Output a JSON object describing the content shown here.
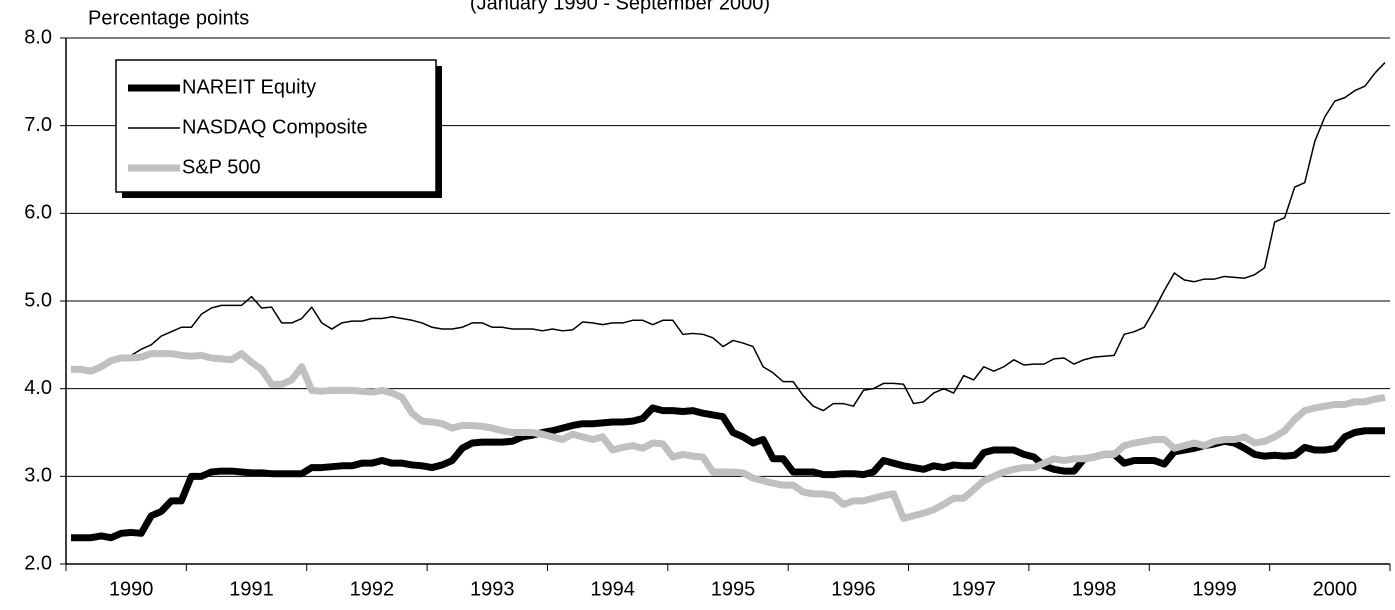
{
  "chart_data": {
    "type": "line",
    "subtitle": "(January 1990 - September 2000)",
    "y_label": "Percentage points",
    "categories": [
      null,
      null,
      null,
      null,
      null,
      null,
      "1990",
      null,
      null,
      null,
      null,
      null,
      null,
      null,
      null,
      null,
      null,
      null,
      "1991",
      null,
      null,
      null,
      null,
      null,
      null,
      null,
      null,
      null,
      null,
      null,
      "1992",
      null,
      null,
      null,
      null,
      null,
      null,
      null,
      null,
      null,
      null,
      null,
      "1993",
      null,
      null,
      null,
      null,
      null,
      null,
      null,
      null,
      null,
      null,
      null,
      "1994",
      null,
      null,
      null,
      null,
      null,
      null,
      null,
      null,
      null,
      null,
      null,
      "1995",
      null,
      null,
      null,
      null,
      null,
      null,
      null,
      null,
      null,
      null,
      null,
      "1996",
      null,
      null,
      null,
      null,
      null,
      null,
      null,
      null,
      null,
      null,
      null,
      "1997",
      null,
      null,
      null,
      null,
      null,
      null,
      null,
      null,
      null,
      null,
      null,
      "1998",
      null,
      null,
      null,
      null,
      null,
      null,
      null,
      null,
      null,
      null,
      null,
      "1999",
      null,
      null,
      null,
      null,
      null,
      null,
      null,
      null,
      null,
      null,
      null,
      "2000",
      null,
      null,
      null,
      null,
      null
    ],
    "series": [
      {
        "name": "NAREIT Equity",
        "color": "#000000",
        "line_width": 7,
        "values": [
          2.3,
          2.3,
          2.3,
          2.32,
          2.3,
          2.35,
          2.36,
          2.35,
          2.55,
          2.6,
          2.72,
          2.72,
          3.0,
          3.0,
          3.05,
          3.06,
          3.06,
          3.05,
          3.04,
          3.04,
          3.03,
          3.03,
          3.03,
          3.03,
          3.1,
          3.1,
          3.11,
          3.12,
          3.12,
          3.15,
          3.15,
          3.18,
          3.15,
          3.15,
          3.13,
          3.12,
          3.1,
          3.13,
          3.18,
          3.32,
          3.38,
          3.39,
          3.39,
          3.39,
          3.4,
          3.45,
          3.47,
          3.5,
          3.52,
          3.55,
          3.58,
          3.6,
          3.6,
          3.61,
          3.62,
          3.62,
          3.63,
          3.66,
          3.78,
          3.75,
          3.75,
          3.74,
          3.75,
          3.72,
          3.7,
          3.68,
          3.5,
          3.45,
          3.38,
          3.42,
          3.2,
          3.2,
          3.05,
          3.05,
          3.05,
          3.02,
          3.02,
          3.03,
          3.03,
          3.02,
          3.05,
          3.18,
          3.15,
          3.12,
          3.1,
          3.08,
          3.12,
          3.1,
          3.13,
          3.12,
          3.12,
          3.27,
          3.3,
          3.3,
          3.3,
          3.25,
          3.22,
          3.12,
          3.08,
          3.06,
          3.06,
          3.2,
          3.22,
          3.25,
          3.25,
          3.15,
          3.18,
          3.18,
          3.18,
          3.14,
          3.28,
          3.3,
          3.32,
          3.35,
          3.37,
          3.4,
          3.38,
          3.32,
          3.25,
          3.23,
          3.24,
          3.23,
          3.24,
          3.33,
          3.3,
          3.3,
          3.32,
          3.45,
          3.5,
          3.52,
          3.52,
          3.52
        ]
      },
      {
        "name": "NASDAQ Composite",
        "color": "#000000",
        "line_width": 1.5,
        "values": [
          4.22,
          4.22,
          4.22,
          4.25,
          4.3,
          4.35,
          4.38,
          4.45,
          4.5,
          4.6,
          4.65,
          4.7,
          4.7,
          4.85,
          4.92,
          4.95,
          4.95,
          4.95,
          5.05,
          4.92,
          4.93,
          4.75,
          4.75,
          4.8,
          4.93,
          4.75,
          4.68,
          4.75,
          4.77,
          4.77,
          4.8,
          4.8,
          4.82,
          4.8,
          4.78,
          4.75,
          4.7,
          4.68,
          4.68,
          4.7,
          4.75,
          4.75,
          4.7,
          4.7,
          4.68,
          4.68,
          4.68,
          4.66,
          4.68,
          4.66,
          4.67,
          4.76,
          4.75,
          4.73,
          4.75,
          4.75,
          4.78,
          4.78,
          4.73,
          4.78,
          4.78,
          4.62,
          4.63,
          4.62,
          4.58,
          4.48,
          4.55,
          4.52,
          4.48,
          4.25,
          4.18,
          4.08,
          4.08,
          3.92,
          3.8,
          3.75,
          3.83,
          3.83,
          3.8,
          3.98,
          4.0,
          4.06,
          4.06,
          4.05,
          3.83,
          3.85,
          3.95,
          4.0,
          3.95,
          4.15,
          4.1,
          4.25,
          4.2,
          4.25,
          4.33,
          4.27,
          4.28,
          4.28,
          4.34,
          4.35,
          4.28,
          4.33,
          4.36,
          4.37,
          4.38,
          4.62,
          4.65,
          4.7,
          4.9,
          5.12,
          5.32,
          5.24,
          5.22,
          5.25,
          5.25,
          5.28,
          5.27,
          5.26,
          5.3,
          5.38,
          5.9,
          5.95,
          6.3,
          6.35,
          6.82,
          7.1,
          7.28,
          7.32,
          7.4,
          7.45,
          7.6,
          7.72
        ]
      },
      {
        "name": "S&P 500",
        "color": "#c0c0c0",
        "line_width": 7,
        "values": [
          4.22,
          4.22,
          4.2,
          4.25,
          4.32,
          4.35,
          4.35,
          4.36,
          4.4,
          4.4,
          4.4,
          4.38,
          4.37,
          4.38,
          4.35,
          4.34,
          4.33,
          4.4,
          4.3,
          4.22,
          4.05,
          4.05,
          4.1,
          4.25,
          3.98,
          3.97,
          3.98,
          3.98,
          3.98,
          3.97,
          3.96,
          3.98,
          3.95,
          3.9,
          3.72,
          3.63,
          3.62,
          3.6,
          3.55,
          3.58,
          3.58,
          3.57,
          3.55,
          3.52,
          3.5,
          3.5,
          3.5,
          3.48,
          3.45,
          3.42,
          3.48,
          3.45,
          3.42,
          3.45,
          3.3,
          3.33,
          3.35,
          3.32,
          3.38,
          3.37,
          3.22,
          3.25,
          3.23,
          3.22,
          3.05,
          3.05,
          3.05,
          3.04,
          2.98,
          2.95,
          2.92,
          2.9,
          2.9,
          2.82,
          2.8,
          2.8,
          2.78,
          2.68,
          2.72,
          2.72,
          2.75,
          2.78,
          2.8,
          2.52,
          2.55,
          2.58,
          2.62,
          2.68,
          2.75,
          2.75,
          2.85,
          2.95,
          3.0,
          3.05,
          3.08,
          3.1,
          3.1,
          3.15,
          3.2,
          3.18,
          3.2,
          3.2,
          3.22,
          3.25,
          3.25,
          3.35,
          3.38,
          3.4,
          3.42,
          3.42,
          3.32,
          3.35,
          3.38,
          3.35,
          3.4,
          3.42,
          3.42,
          3.45,
          3.38,
          3.4,
          3.45,
          3.52,
          3.65,
          3.75,
          3.78,
          3.8,
          3.82,
          3.82,
          3.85,
          3.85,
          3.88,
          3.9
        ]
      }
    ],
    "ylim": [
      2,
      8
    ],
    "yticks": [
      {
        "value": 2,
        "label": "2.0"
      },
      {
        "value": 3,
        "label": "3.0"
      },
      {
        "value": 4,
        "label": "4.0"
      },
      {
        "value": 5,
        "label": "5.0"
      },
      {
        "value": 6,
        "label": "6.0"
      },
      {
        "value": 7,
        "label": "7.0"
      },
      {
        "value": 8,
        "label": "8.0"
      }
    ],
    "grid": true,
    "legend": "upper left"
  }
}
